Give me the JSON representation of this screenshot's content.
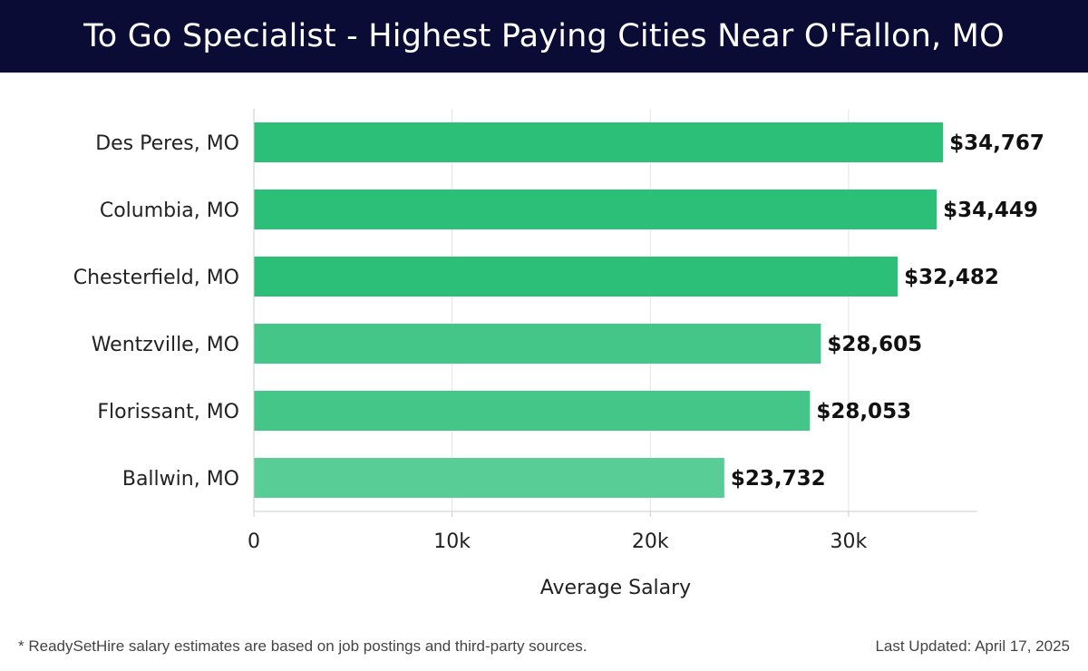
{
  "header": {
    "title": "To Go Specialist - Highest Paying Cities Near O'Fallon, MO"
  },
  "chart_data": {
    "type": "bar",
    "orientation": "horizontal",
    "categories": [
      "Des Peres, MO",
      "Columbia, MO",
      "Chesterfield, MO",
      "Wentzville, MO",
      "Florissant, MO",
      "Ballwin, MO"
    ],
    "values": [
      34767,
      34449,
      32482,
      28605,
      28053,
      23732
    ],
    "value_labels": [
      "$34,767",
      "$34,449",
      "$32,482",
      "$28,605",
      "$28,053",
      "$23,732"
    ],
    "xlabel": "Average Salary",
    "ylabel": "",
    "xlim": [
      0,
      36500
    ],
    "x_ticks": [
      0,
      10000,
      20000,
      30000
    ],
    "x_tick_labels": [
      "0",
      "10k",
      "20k",
      "30k"
    ],
    "grid": "vertical",
    "colors": [
      "#2cbf78",
      "#2cbf78",
      "#2cbf78",
      "#43c687",
      "#43c687",
      "#58ce96"
    ]
  },
  "footer": {
    "note": "* ReadySetHire salary estimates are based on job postings and third-party sources.",
    "updated": "Last Updated: April 17, 2025"
  }
}
